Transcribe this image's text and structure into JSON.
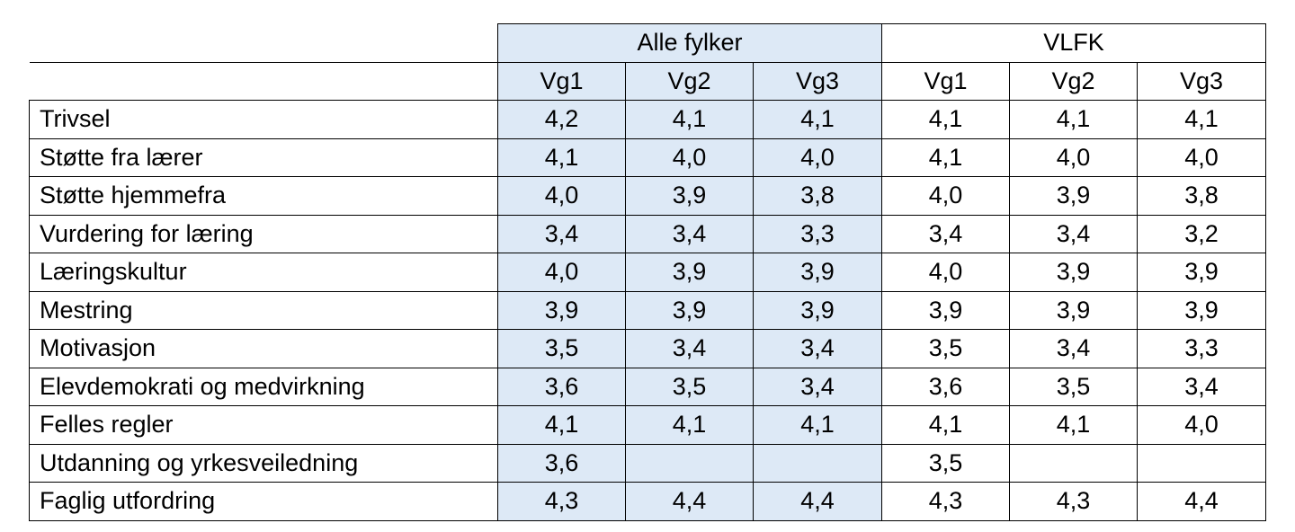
{
  "header": {
    "groups": [
      "Alle fylker",
      "VLFK"
    ],
    "levels": [
      "Vg1",
      "Vg2",
      "Vg3"
    ]
  },
  "rows": [
    {
      "label": "Trivsel",
      "values": [
        "4,2",
        "4,1",
        "4,1",
        "4,1",
        "4,1",
        "4,1"
      ]
    },
    {
      "label": "Støtte fra lærer",
      "values": [
        "4,1",
        "4,0",
        "4,0",
        "4,1",
        "4,0",
        "4,0"
      ]
    },
    {
      "label": "Støtte hjemmefra",
      "values": [
        "4,0",
        "3,9",
        "3,8",
        "4,0",
        "3,9",
        "3,8"
      ]
    },
    {
      "label": "Vurdering for læring",
      "values": [
        "3,4",
        "3,4",
        "3,3",
        "3,4",
        "3,4",
        "3,2"
      ]
    },
    {
      "label": "Læringskultur",
      "values": [
        "4,0",
        "3,9",
        "3,9",
        "4,0",
        "3,9",
        "3,9"
      ]
    },
    {
      "label": "Mestring",
      "values": [
        "3,9",
        "3,9",
        "3,9",
        "3,9",
        "3,9",
        "3,9"
      ]
    },
    {
      "label": "Motivasjon",
      "values": [
        "3,5",
        "3,4",
        "3,4",
        "3,5",
        "3,4",
        "3,3"
      ]
    },
    {
      "label": "Elevdemokrati og medvirkning",
      "values": [
        "3,6",
        "3,5",
        "3,4",
        "3,6",
        "3,5",
        "3,4"
      ]
    },
    {
      "label": "Felles regler",
      "values": [
        "4,1",
        "4,1",
        "4,1",
        "4,1",
        "4,1",
        "4,0"
      ]
    },
    {
      "label": "Utdanning og yrkesveiledning",
      "values": [
        "3,6",
        "",
        "",
        "3,5",
        "",
        ""
      ]
    },
    {
      "label": "Faglig utfordring",
      "values": [
        "4,3",
        "4,4",
        "4,4",
        "4,3",
        "4,3",
        "4,4"
      ]
    }
  ]
}
